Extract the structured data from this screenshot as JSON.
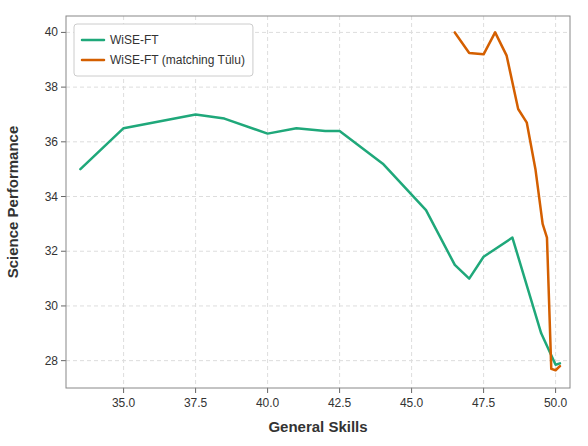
{
  "chart_data": {
    "type": "line",
    "xlabel": "General Skills",
    "ylabel": "Science Performance",
    "series": [
      {
        "name": "WiSE-FT",
        "color": "#1fa87a",
        "x": [
          33.5,
          35.0,
          36.0,
          37.5,
          38.5,
          40.0,
          41.0,
          42.0,
          42.5,
          44.0,
          45.5,
          46.5,
          47.0,
          47.5,
          48.5,
          49.5,
          50.0,
          50.15
        ],
        "values": [
          35.0,
          36.5,
          36.7,
          37.0,
          36.85,
          36.3,
          36.5,
          36.4,
          36.4,
          35.2,
          33.5,
          31.5,
          31.0,
          31.8,
          32.5,
          29.0,
          27.85,
          27.9
        ]
      },
      {
        "name": "WiSE-FT (matching Tūlu)",
        "color": "#d45f00",
        "x": [
          46.5,
          47.0,
          47.5,
          47.9,
          48.3,
          48.7,
          49.0,
          49.3,
          49.55,
          49.7,
          49.85,
          50.0,
          50.15
        ],
        "values": [
          40.0,
          39.25,
          39.2,
          40.0,
          39.15,
          37.2,
          36.7,
          35.0,
          33.0,
          32.5,
          27.7,
          27.65,
          27.8
        ]
      }
    ],
    "xlim": [
      33.0,
      50.5
    ],
    "ylim": [
      27.0,
      40.6
    ],
    "xticks": [
      {
        "value": 35.0,
        "label": "35.0"
      },
      37.5,
      {
        "value": 40.0,
        "label": "40.0"
      },
      42.5,
      {
        "value": 45.0,
        "label": "45.0"
      },
      47.5,
      {
        "value": 50.0,
        "label": "50.0"
      }
    ],
    "yticks": [
      28,
      30,
      32,
      34,
      36,
      38,
      40
    ],
    "grid": true,
    "legend": "upper left"
  }
}
